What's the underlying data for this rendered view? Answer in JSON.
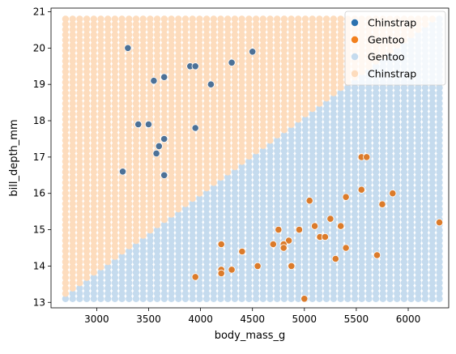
{
  "chart_data": {
    "type": "scatter",
    "title": "",
    "xlabel": "body_mass_g",
    "ylabel": "bill_depth_mm",
    "xlim": [
      2560,
      6390
    ],
    "ylim": [
      12.85,
      21.1
    ],
    "xticks": [
      3000,
      3500,
      4000,
      4500,
      5000,
      5500,
      6000
    ],
    "yticks": [
      13,
      14,
      15,
      16,
      17,
      18,
      19,
      20,
      21
    ],
    "grid": false,
    "legend_position": "top-right",
    "decision_grid": {
      "x_range": [
        2700,
        6300
      ],
      "y_range": [
        13.1,
        20.8
      ],
      "x_count": 54,
      "y_count": 54,
      "boundary": {
        "x1": 2700,
        "y1": 13.2,
        "x2": 6300,
        "y2": 20.85
      },
      "above_class": "Chinstrap",
      "below_class": "Gentoo"
    },
    "series": [
      {
        "name": "Chinstrap",
        "color": "#4c7197",
        "points": [
          [
            3300,
            20.0
          ],
          [
            4500,
            19.9
          ],
          [
            4300,
            19.6
          ],
          [
            3900,
            19.5
          ],
          [
            3950,
            19.5
          ],
          [
            3650,
            19.2
          ],
          [
            3550,
            19.1
          ],
          [
            4100,
            19.0
          ],
          [
            3400,
            17.9
          ],
          [
            3500,
            17.9
          ],
          [
            3950,
            17.8
          ],
          [
            3650,
            17.5
          ],
          [
            3600,
            17.3
          ],
          [
            3575,
            17.1
          ],
          [
            3250,
            16.6
          ],
          [
            3650,
            16.5
          ]
        ]
      },
      {
        "name": "Gentoo",
        "color": "#db7b2b",
        "points": [
          [
            5550,
            17.0
          ],
          [
            5600,
            17.0
          ],
          [
            5850,
            16.0
          ],
          [
            5550,
            16.1
          ],
          [
            5400,
            15.9
          ],
          [
            5050,
            15.8
          ],
          [
            5750,
            15.7
          ],
          [
            5250,
            15.3
          ],
          [
            6300,
            15.2
          ],
          [
            5100,
            15.1
          ],
          [
            5350,
            15.1
          ],
          [
            4750,
            15.0
          ],
          [
            4950,
            15.0
          ],
          [
            5150,
            14.8
          ],
          [
            5200,
            14.8
          ],
          [
            4850,
            14.7
          ],
          [
            4200,
            14.6
          ],
          [
            4700,
            14.6
          ],
          [
            4800,
            14.6
          ],
          [
            4800,
            14.5
          ],
          [
            5400,
            14.5
          ],
          [
            4400,
            14.4
          ],
          [
            5700,
            14.3
          ],
          [
            5300,
            14.2
          ],
          [
            4550,
            14.0
          ],
          [
            4875,
            14.0
          ],
          [
            4200,
            13.9
          ],
          [
            4300,
            13.9
          ],
          [
            4200,
            13.8
          ],
          [
            3950,
            13.7
          ],
          [
            5000,
            13.1
          ]
        ]
      }
    ],
    "legend": [
      {
        "label": "Chinstrap",
        "color": "#2b72b0",
        "alpha": 1.0
      },
      {
        "label": "Gentoo",
        "color": "#f2801e",
        "alpha": 1.0
      },
      {
        "label": "Gentoo",
        "color": "#c5dbee",
        "alpha": 1.0
      },
      {
        "label": "Chinstrap",
        "color": "#fddcbd",
        "alpha": 1.0
      }
    ],
    "colors": {
      "region_above": "#fddcbd",
      "region_below": "#c5dbee",
      "marker_edge": "#ffffff"
    }
  }
}
